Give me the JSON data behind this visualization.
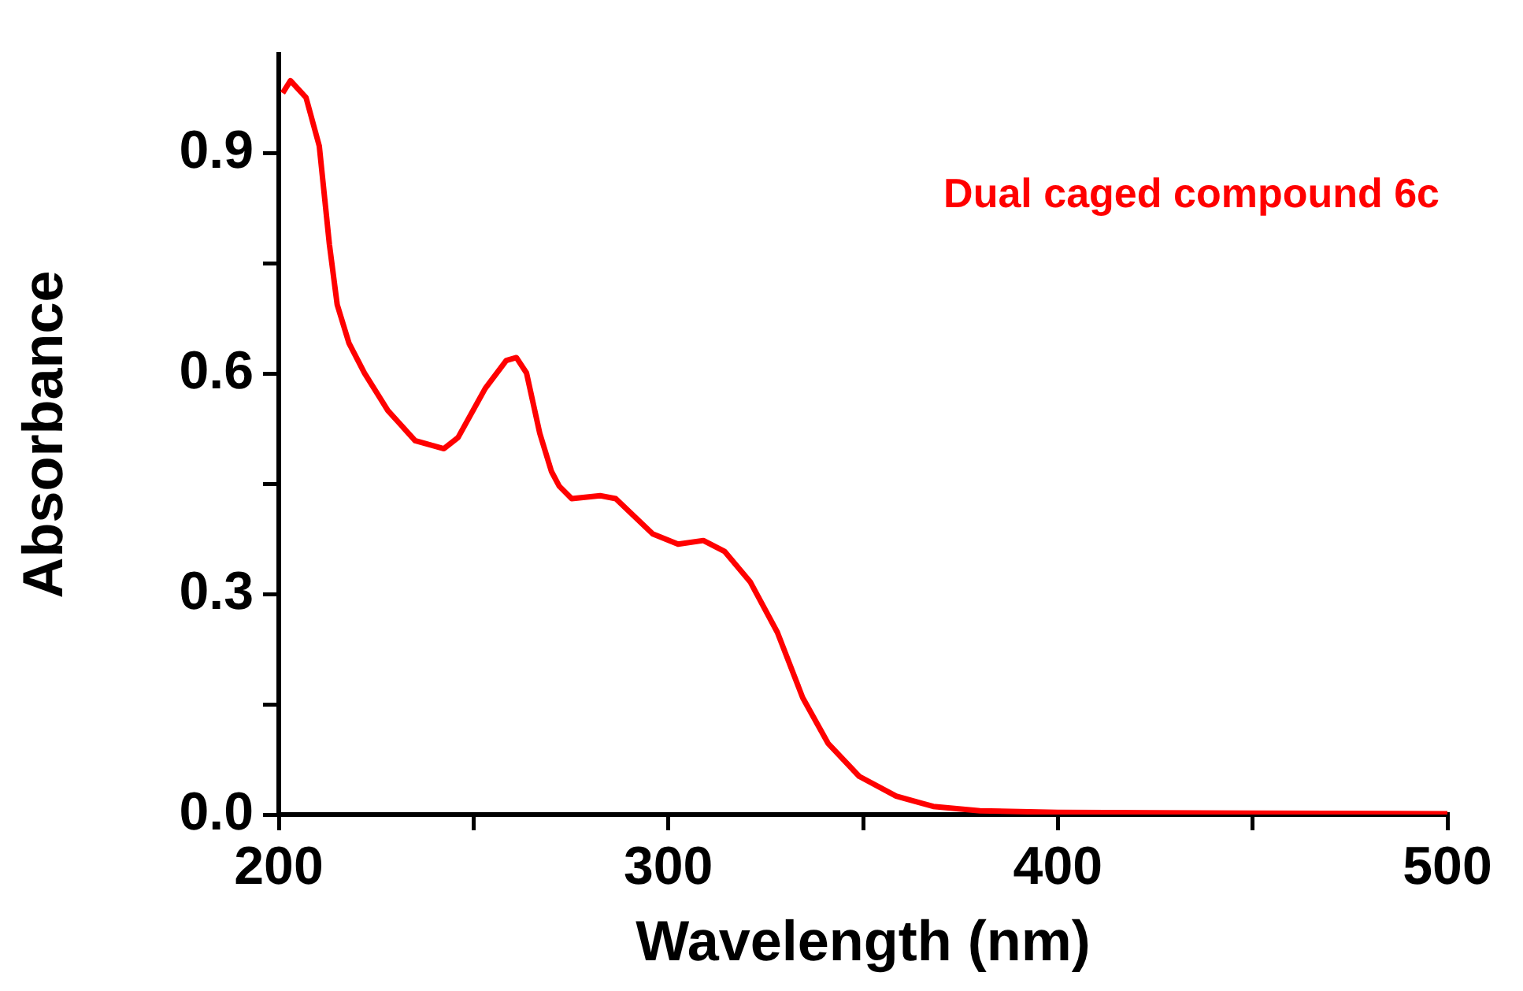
{
  "chart_data": {
    "type": "line",
    "xlabel": "Wavelength (nm)",
    "ylabel": "Absorbance",
    "xlim": [
      200,
      500
    ],
    "ylim": [
      0,
      1.035
    ],
    "xticks": [
      200,
      {
        "value": 250,
        "label": null
      },
      300,
      {
        "value": 350,
        "label": null
      },
      400,
      {
        "value": 450,
        "label": null
      },
      500
    ],
    "yticks": [
      {
        "value": 0,
        "label": "0.0"
      },
      {
        "value": 0.15,
        "label": null
      },
      0.3,
      {
        "value": 0.45,
        "label": null
      },
      0.6,
      {
        "value": 0.75,
        "label": null
      },
      0.9
    ],
    "grid": false,
    "legend": "top right",
    "marker": "none",
    "line_style": "solid",
    "series": [
      {
        "name": "Dual caged compound 6c",
        "color": "#ff0000",
        "x": [
          201,
          203,
          207,
          210.4,
          213,
          215,
          218,
          222,
          228,
          235,
          242.4,
          246,
          253,
          258.4,
          261,
          263.6,
          267,
          270,
          272,
          275.2,
          282.5,
          286.5,
          296,
          302.5,
          309,
          314.5,
          321,
          328,
          334.5,
          341,
          349,
          358.5,
          368,
          380,
          400,
          450,
          500
        ],
        "values": [
          0.982,
          0.999,
          0.976,
          0.91,
          0.776,
          0.694,
          0.642,
          0.601,
          0.55,
          0.509,
          0.498,
          0.513,
          0.58,
          0.618,
          0.622,
          0.601,
          0.519,
          0.467,
          0.447,
          0.43,
          0.434,
          0.43,
          0.382,
          0.368,
          0.373,
          0.358,
          0.317,
          0.248,
          0.159,
          0.097,
          0.052,
          0.025,
          0.011,
          0.005,
          0.003,
          0.002,
          0.001
        ]
      }
    ]
  }
}
